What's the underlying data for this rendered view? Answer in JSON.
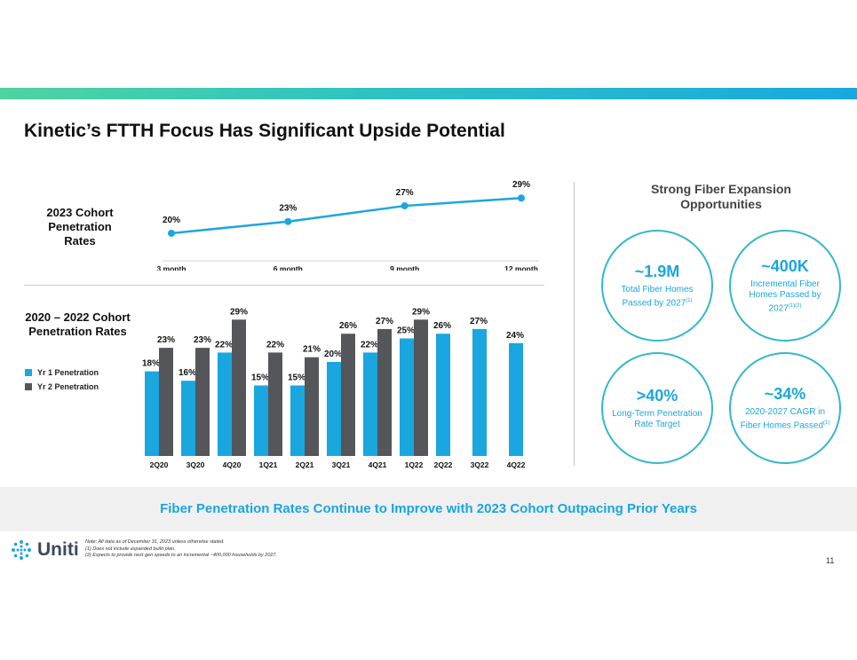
{
  "title": "Kinetic’s FTTH Focus Has Significant Upside Potential",
  "line_section_label": "2023 Cohort Penetration Rates",
  "bar_section_label": "2020 – 2022 Cohort Penetration Rates",
  "legend": {
    "yr1": "Yr 1 Penetration",
    "yr2": "Yr 2 Penetration"
  },
  "colors": {
    "accent": "#1aa6de",
    "dark_bar": "#54565a",
    "line": "#1aa6de"
  },
  "chart_data": [
    {
      "type": "line",
      "title": "2023 Cohort Penetration Rates",
      "categories": [
        "3 month",
        "6 month",
        "9 month",
        "12 month"
      ],
      "values": [
        20,
        23,
        27,
        29
      ],
      "labels": [
        "20%",
        "23%",
        "27%",
        "29%"
      ],
      "ylim": [
        15,
        32
      ]
    },
    {
      "type": "bar",
      "title": "2020 – 2022 Cohort Penetration Rates",
      "categories": [
        "2Q20",
        "3Q20",
        "4Q20",
        "1Q21",
        "2Q21",
        "3Q21",
        "4Q21",
        "1Q22",
        "2Q22",
        "3Q22",
        "4Q22"
      ],
      "series": [
        {
          "name": "Yr 1 Penetration",
          "values": [
            18,
            16,
            22,
            15,
            15,
            20,
            22,
            25,
            26,
            27,
            24
          ],
          "labels": [
            "18%",
            "16%",
            "22%",
            "15%",
            "15%",
            "20%",
            "22%",
            "25%",
            "26%",
            "27%",
            "24%"
          ]
        },
        {
          "name": "Yr 2 Penetration",
          "values": [
            23,
            23,
            29,
            22,
            21,
            26,
            27,
            29,
            null,
            null,
            null
          ],
          "labels": [
            "23%",
            "23%",
            "29%",
            "22%",
            "21%",
            "26%",
            "27%",
            "29%",
            null,
            null,
            null
          ]
        }
      ],
      "ylim": [
        0,
        30
      ]
    }
  ],
  "right_panel": {
    "heading": "Strong Fiber Expansion Opportunities",
    "stats": [
      {
        "big": "~1.9M",
        "small": "Total Fiber Homes Passed by 2027",
        "sup": "(1)"
      },
      {
        "big": "~400K",
        "small": "Incremental Fiber Homes Passed by 2027",
        "sup": "(1)(2)"
      },
      {
        "big": ">40%",
        "small": "Long-Term Penetration Rate Target",
        "sup": ""
      },
      {
        "big": "~34%",
        "small": "2020-2027 CAGR in Fiber Homes Passed",
        "sup": "(1)"
      }
    ]
  },
  "banner": "Fiber Penetration Rates Continue to Improve with 2023 Cohort Outpacing Prior Years",
  "logo_text": "Uniti",
  "notes": [
    "Note: All data as of December 31, 2023 unless otherwise stated.",
    "(1)    Does not include expanded build plan.",
    "(2)    Expects to provide next gen speeds to an incremental ~400,000 households by 2027."
  ],
  "page_number": "11"
}
